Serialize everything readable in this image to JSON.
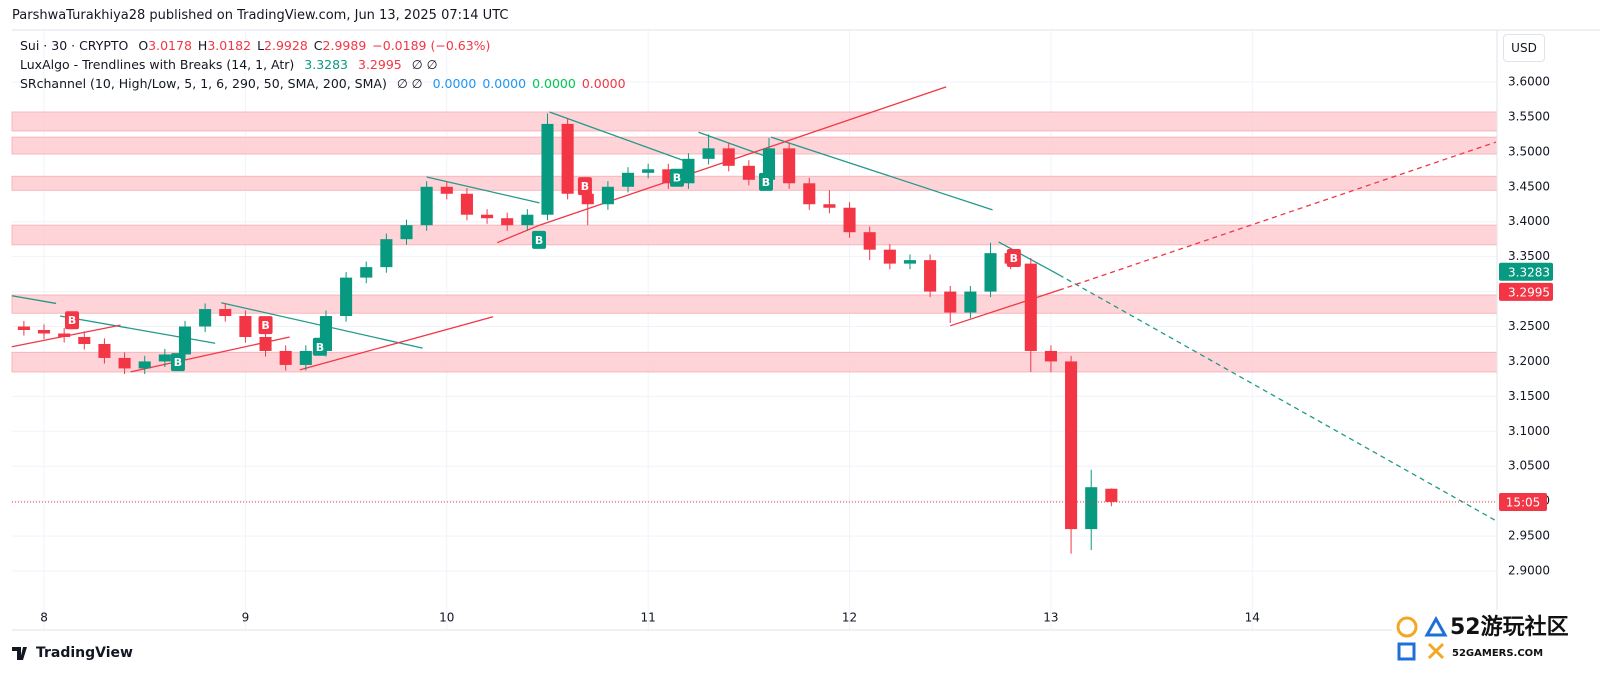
{
  "header": {
    "publisher": "ParshwaTurakhiya28 published on TradingView.com, Jun 13, 2025 07:14 UTC"
  },
  "legend": {
    "symbol": "Sui · 30 · CRYPTO",
    "ohlc": [
      {
        "key": "O",
        "val": "3.0178"
      },
      {
        "key": "H",
        "val": "3.0182"
      },
      {
        "key": "L",
        "val": "2.9928"
      },
      {
        "key": "C",
        "val": "2.9989"
      }
    ],
    "change": "−0.0189 (−0.63%)",
    "indicator1": "LuxAlgo - Trendlines with Breaks (14, 1, Atr)",
    "indicator1_values": [
      "3.3283",
      "3.2995"
    ],
    "indicator1_empty": "∅ ∅",
    "indicator2": "SRchannel (10, High/Low, 5, 1, 6, 290, 50, SMA, 200, SMA)",
    "indicator2_empty": "∅ ∅",
    "indicator2_values": [
      {
        "text": "0.0000",
        "color": "#2196f3"
      },
      {
        "text": "0.0000",
        "color": "#2196f3"
      },
      {
        "text": "0.0000",
        "color": "#00c853"
      },
      {
        "text": "0.0000",
        "color": "#f23645"
      }
    ]
  },
  "currency_button": "USD",
  "footer": {
    "brand": "TradingView"
  },
  "watermark": {
    "title": "52游玩社区",
    "site": "52GAMERS.COM"
  },
  "chart_data": {
    "type": "candlestick",
    "up_color": "#089981",
    "down_color": "#f23645",
    "x": [
      7.9,
      8.0,
      8.1,
      8.2,
      8.3,
      8.4,
      8.5,
      8.6,
      8.7,
      8.8,
      8.9,
      9.0,
      9.1,
      9.2,
      9.3,
      9.4,
      9.5,
      9.6,
      9.7,
      9.8,
      9.9,
      10.0,
      10.1,
      10.2,
      10.3,
      10.4,
      10.5,
      10.6,
      10.7,
      10.8,
      10.9,
      11.0,
      11.1,
      11.2,
      11.3,
      11.4,
      11.5,
      11.6,
      11.7,
      11.8,
      11.9,
      12.0,
      12.1,
      12.2,
      12.3,
      12.4,
      12.5,
      12.6,
      12.7,
      12.8,
      12.9,
      13.0,
      13.1,
      13.2,
      13.3
    ],
    "open": [
      3.25,
      3.245,
      3.24,
      3.235,
      3.225,
      3.205,
      3.19,
      3.2,
      3.21,
      3.25,
      3.275,
      3.265,
      3.235,
      3.215,
      3.195,
      3.215,
      3.265,
      3.32,
      3.335,
      3.375,
      3.395,
      3.45,
      3.44,
      3.41,
      3.405,
      3.395,
      3.41,
      3.54,
      3.44,
      3.425,
      3.45,
      3.47,
      3.475,
      3.455,
      3.49,
      3.505,
      3.48,
      3.46,
      3.505,
      3.455,
      3.425,
      3.42,
      3.385,
      3.36,
      3.34,
      3.345,
      3.3,
      3.27,
      3.3,
      3.355,
      3.34,
      3.215,
      3.2,
      2.96,
      3.0178
    ],
    "high": [
      3.258,
      3.253,
      3.248,
      3.243,
      3.233,
      3.213,
      3.208,
      3.218,
      3.258,
      3.283,
      3.283,
      3.273,
      3.243,
      3.223,
      3.223,
      3.273,
      3.328,
      3.343,
      3.383,
      3.403,
      3.458,
      3.458,
      3.448,
      3.418,
      3.413,
      3.418,
      3.555,
      3.548,
      3.448,
      3.458,
      3.478,
      3.483,
      3.483,
      3.498,
      3.525,
      3.513,
      3.488,
      3.52,
      3.513,
      3.463,
      3.445,
      3.428,
      3.393,
      3.368,
      3.353,
      3.353,
      3.308,
      3.308,
      3.37,
      3.363,
      3.348,
      3.223,
      3.208,
      3.045,
      3.0182
    ],
    "low": [
      3.237,
      3.232,
      3.227,
      3.217,
      3.197,
      3.182,
      3.182,
      3.192,
      3.202,
      3.242,
      3.257,
      3.227,
      3.207,
      3.187,
      3.187,
      3.207,
      3.257,
      3.312,
      3.327,
      3.367,
      3.387,
      3.432,
      3.402,
      3.397,
      3.387,
      3.387,
      3.402,
      3.432,
      3.395,
      3.417,
      3.442,
      3.462,
      3.447,
      3.447,
      3.482,
      3.472,
      3.452,
      3.452,
      3.447,
      3.417,
      3.412,
      3.377,
      3.345,
      3.332,
      3.332,
      3.292,
      3.255,
      3.262,
      3.292,
      3.332,
      3.185,
      3.185,
      2.925,
      2.93,
      2.9928
    ],
    "close": [
      3.245,
      3.24,
      3.235,
      3.225,
      3.205,
      3.19,
      3.2,
      3.21,
      3.25,
      3.275,
      3.265,
      3.235,
      3.215,
      3.195,
      3.215,
      3.265,
      3.32,
      3.335,
      3.375,
      3.395,
      3.45,
      3.44,
      3.41,
      3.405,
      3.395,
      3.41,
      3.54,
      3.44,
      3.425,
      3.45,
      3.47,
      3.475,
      3.455,
      3.49,
      3.505,
      3.48,
      3.46,
      3.505,
      3.455,
      3.425,
      3.42,
      3.385,
      3.36,
      3.34,
      3.345,
      3.3,
      3.27,
      3.3,
      3.355,
      3.34,
      3.215,
      3.2,
      2.96,
      3.02,
      2.9989
    ],
    "zones": [
      [
        3.53,
        3.557
      ],
      [
        3.497,
        3.521
      ],
      [
        3.445,
        3.465
      ],
      [
        3.367,
        3.395
      ],
      [
        3.269,
        3.295
      ],
      [
        3.185,
        3.213
      ]
    ],
    "zone_color": "#ffcdd2",
    "trendlines": [
      {
        "x": [
          7.84,
          8.06
        ],
        "y": [
          3.294,
          3.283
        ],
        "color": "#22998a"
      },
      {
        "x": [
          8.08,
          8.85
        ],
        "y": [
          3.265,
          3.226
        ],
        "color": "#22998a"
      },
      {
        "x": [
          8.88,
          9.88
        ],
        "y": [
          3.284,
          3.219
        ],
        "color": "#22998a"
      },
      {
        "x": [
          9.9,
          10.46
        ],
        "y": [
          3.464,
          3.427
        ],
        "color": "#22998a"
      },
      {
        "x": [
          10.51,
          11.21
        ],
        "y": [
          3.557,
          3.484
        ],
        "color": "#22998a"
      },
      {
        "x": [
          11.25,
          11.61
        ],
        "y": [
          3.528,
          3.491
        ],
        "color": "#22998a"
      },
      {
        "x": [
          11.61,
          12.71
        ],
        "y": [
          3.521,
          3.417
        ],
        "color": "#22998a"
      },
      {
        "x": [
          12.74,
          13.04
        ],
        "y": [
          3.371,
          3.324
        ],
        "color": "#22998a"
      },
      {
        "x": [
          13.04,
          15.21
        ],
        "y": [
          3.324,
          2.972
        ],
        "color": "#22998a",
        "dashed": true
      },
      {
        "x": [
          7.84,
          8.38
        ],
        "y": [
          3.221,
          3.252
        ],
        "color": "#f23645"
      },
      {
        "x": [
          8.43,
          9.22
        ],
        "y": [
          3.185,
          3.235
        ],
        "color": "#f23645"
      },
      {
        "x": [
          9.27,
          10.23
        ],
        "y": [
          3.188,
          3.264
        ],
        "color": "#f23645"
      },
      {
        "x": [
          10.25,
          10.46
        ],
        "y": [
          3.37,
          3.395
        ],
        "color": "#f23645"
      },
      {
        "x": [
          10.46,
          12.48
        ],
        "y": [
          3.395,
          3.593
        ],
        "color": "#f23645"
      },
      {
        "x": [
          12.5,
          13.04
        ],
        "y": [
          3.251,
          3.302
        ],
        "color": "#f23645"
      },
      {
        "x": [
          13.04,
          15.21
        ],
        "y": [
          3.302,
          3.514
        ],
        "color": "#f23645",
        "dashed": true
      }
    ],
    "signals": [
      {
        "x": 8.665,
        "price": 3.199,
        "label": "B",
        "color": "#089981"
      },
      {
        "x": 9.37,
        "price": 3.221,
        "label": "B",
        "color": "#089981"
      },
      {
        "x": 10.458,
        "price": 3.374,
        "label": "B",
        "color": "#089981"
      },
      {
        "x": 11.143,
        "price": 3.463,
        "label": "B",
        "color": "#089981"
      },
      {
        "x": 11.585,
        "price": 3.457,
        "label": "B",
        "color": "#089981"
      },
      {
        "x": 8.139,
        "price": 3.259,
        "label": "B",
        "color": "#f23645"
      },
      {
        "x": 9.1,
        "price": 3.252,
        "label": "B",
        "color": "#f23645"
      },
      {
        "x": 10.686,
        "price": 3.451,
        "label": "B",
        "color": "#f23645"
      },
      {
        "x": 12.816,
        "price": 3.348,
        "label": "B",
        "color": "#f23645"
      }
    ],
    "last_price": 2.9989,
    "last_price_label": "15:05",
    "last_price_color": "#f23645",
    "axis_markers": [
      {
        "value": 3.3283,
        "color": "#089981"
      },
      {
        "value": 3.2995,
        "color": "#f23645"
      }
    ],
    "xlim": [
      7.841,
      15.215
    ],
    "xticks": [
      8,
      9,
      10,
      11,
      12,
      13,
      14
    ],
    "ylim": [
      2.8156,
      3.6744
    ],
    "yticks": [
      {
        "value": 2.9,
        "label": "2.9000"
      },
      {
        "value": 2.95,
        "label": "2.9500"
      },
      {
        "value": 3.0,
        "label": "3.0000"
      },
      {
        "value": 3.05,
        "label": "3.0500"
      },
      {
        "value": 3.1,
        "label": "3.1000"
      },
      {
        "value": 3.15,
        "label": "3.1500"
      },
      {
        "value": 3.2,
        "label": "3.2000"
      },
      {
        "value": 3.25,
        "label": "3.2500"
      },
      {
        "value": 3.3,
        "label": "3.3000"
      },
      {
        "value": 3.35,
        "label": "3.3500"
      },
      {
        "value": 3.4,
        "label": "3.4000"
      },
      {
        "value": 3.45,
        "label": "3.4500"
      },
      {
        "value": 3.5,
        "label": "3.5000"
      },
      {
        "value": 3.55,
        "label": "3.5500"
      },
      {
        "value": 3.6,
        "label": "3.6000"
      }
    ],
    "grid": true
  }
}
